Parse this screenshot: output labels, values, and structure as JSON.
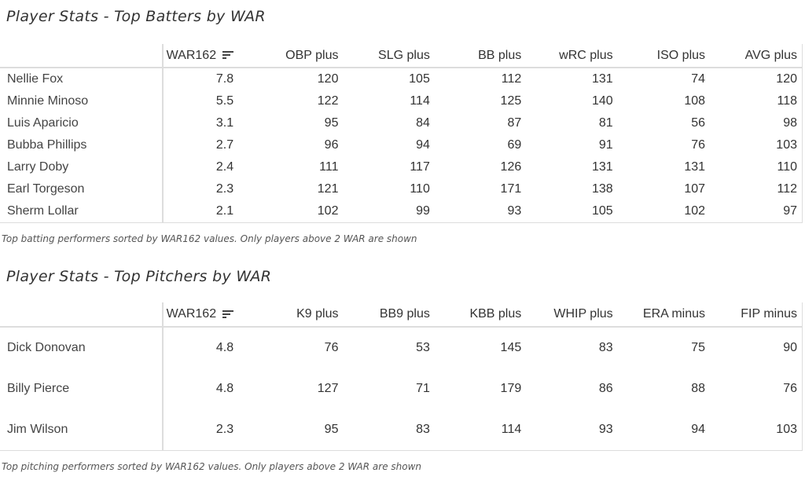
{
  "batters": {
    "title": "Player Stats - Top Batters by WAR",
    "columns": [
      "",
      "WAR162",
      "OBP plus",
      "SLG plus",
      "BB plus",
      "wRC plus",
      "ISO plus",
      "AVG plus"
    ],
    "sort_icon": "sort-descending-icon",
    "rows": [
      [
        "Nellie Fox",
        "7.8",
        "120",
        "105",
        "112",
        "131",
        "74",
        "120"
      ],
      [
        "Minnie Minoso",
        "5.5",
        "122",
        "114",
        "125",
        "140",
        "108",
        "118"
      ],
      [
        "Luis Aparicio",
        "3.1",
        "95",
        "84",
        "87",
        "81",
        "56",
        "98"
      ],
      [
        "Bubba Phillips",
        "2.7",
        "96",
        "94",
        "69",
        "91",
        "76",
        "103"
      ],
      [
        "Larry Doby",
        "2.4",
        "111",
        "117",
        "126",
        "131",
        "131",
        "110"
      ],
      [
        "Earl Torgeson",
        "2.3",
        "121",
        "110",
        "171",
        "138",
        "107",
        "112"
      ],
      [
        "Sherm Lollar",
        "2.1",
        "102",
        "99",
        "93",
        "105",
        "102",
        "97"
      ]
    ],
    "caption": "Top batting performers sorted by WAR162 values. Only players above 2 WAR are shown"
  },
  "pitchers": {
    "title": "Player Stats - Top Pitchers by WAR",
    "columns": [
      "",
      "WAR162",
      "K9 plus",
      "BB9 plus",
      "KBB plus",
      "WHIP plus",
      "ERA minus",
      "FIP minus"
    ],
    "sort_icon": "sort-descending-icon",
    "rows": [
      [
        "Dick Donovan",
        "4.8",
        "76",
        "53",
        "145",
        "83",
        "75",
        "90"
      ],
      [
        "Billy Pierce",
        "4.8",
        "127",
        "71",
        "179",
        "86",
        "88",
        "76"
      ],
      [
        "Jim Wilson",
        "2.3",
        "95",
        "83",
        "114",
        "93",
        "94",
        "103"
      ]
    ],
    "caption": "Top pitching performers sorted by WAR162 values. Only players above 2 WAR are shown"
  }
}
